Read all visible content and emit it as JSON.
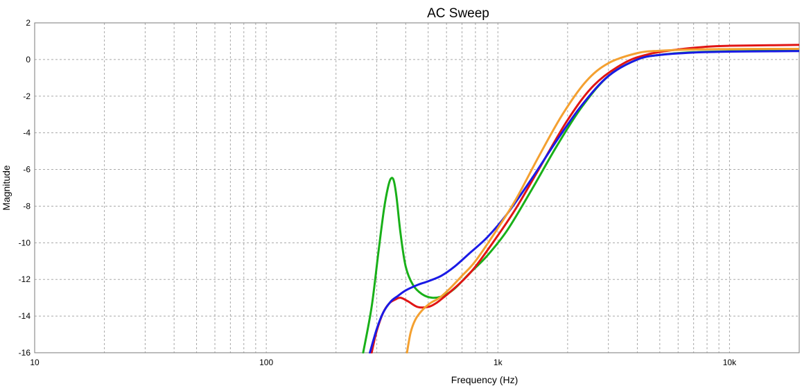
{
  "chart_data": {
    "type": "line",
    "title": "AC Sweep",
    "xlabel": "Frequency (Hz)",
    "ylabel": "Magnitude",
    "xscale": "log",
    "xlim": [
      10,
      20000
    ],
    "ylim": [
      -16,
      2
    ],
    "x_ticks": [
      {
        "value": 10,
        "label": "10"
      },
      {
        "value": 100,
        "label": "100"
      },
      {
        "value": 1000,
        "label": "1k"
      },
      {
        "value": 10000,
        "label": "10k"
      }
    ],
    "y_ticks": [
      {
        "value": 2,
        "label": "2"
      },
      {
        "value": 0,
        "label": "0"
      },
      {
        "value": -2,
        "label": "-2"
      },
      {
        "value": -4,
        "label": "-4"
      },
      {
        "value": -6,
        "label": "-6"
      },
      {
        "value": -8,
        "label": "-8"
      },
      {
        "value": -10,
        "label": "-10"
      },
      {
        "value": -12,
        "label": "-12"
      },
      {
        "value": -14,
        "label": "-14"
      },
      {
        "value": -16,
        "label": "-16"
      }
    ],
    "grid": true,
    "series": [
      {
        "color": "#19b019",
        "x": [
          262,
          285,
          305,
          322,
          335,
          345,
          355,
          365,
          380,
          400,
          430,
          470,
          520,
          580,
          650,
          750,
          900,
          1100,
          1400,
          1800,
          2300,
          3000,
          4000,
          5000,
          7000,
          10000,
          15000,
          20000
        ],
        "y": [
          -16,
          -13.5,
          -10.5,
          -8.2,
          -7.0,
          -6.5,
          -6.6,
          -7.5,
          -9.5,
          -11.3,
          -12.3,
          -12.8,
          -13.0,
          -12.9,
          -12.5,
          -11.7,
          -10.7,
          -9.3,
          -7.1,
          -4.7,
          -2.6,
          -0.9,
          0.0,
          0.25,
          0.4,
          0.45,
          0.48,
          0.5
        ]
      },
      {
        "color": "#e01414",
        "x": [
          285,
          300,
          320,
          340,
          360,
          380,
          410,
          450,
          500,
          540,
          580,
          620,
          700,
          800,
          1000,
          1200,
          1500,
          2000,
          2600,
          3500,
          4500,
          6000,
          8000,
          10000,
          15000,
          20000
        ],
        "y": [
          -16,
          -14.8,
          -13.8,
          -13.3,
          -13.1,
          -13.0,
          -13.2,
          -13.5,
          -13.5,
          -13.3,
          -13.0,
          -12.7,
          -12.1,
          -11.3,
          -9.6,
          -8.1,
          -6.0,
          -3.3,
          -1.4,
          -0.2,
          0.3,
          0.55,
          0.7,
          0.75,
          0.78,
          0.8
        ]
      },
      {
        "color": "#1a1ae6",
        "x": [
          280,
          300,
          320,
          345,
          370,
          400,
          450,
          500,
          570,
          650,
          750,
          900,
          1100,
          1400,
          1800,
          2300,
          3000,
          4000,
          5000,
          7000,
          10000,
          15000,
          20000
        ],
        "y": [
          -16,
          -14.7,
          -13.8,
          -13.2,
          -12.9,
          -12.6,
          -12.3,
          -12.1,
          -11.8,
          -11.3,
          -10.6,
          -9.7,
          -8.4,
          -6.5,
          -4.4,
          -2.5,
          -0.9,
          0.0,
          0.25,
          0.38,
          0.43,
          0.45,
          0.46
        ]
      },
      {
        "color": "#f4a030",
        "x": [
          405,
          420,
          440,
          470,
          510,
          560,
          620,
          700,
          800,
          1000,
          1200,
          1500,
          1900,
          2400,
          3000,
          4000,
          5000,
          7000,
          10000,
          15000,
          20000
        ],
        "y": [
          -16,
          -14.9,
          -14.2,
          -13.7,
          -13.3,
          -13.0,
          -12.5,
          -11.8,
          -11.0,
          -9.2,
          -7.6,
          -5.3,
          -3.0,
          -1.2,
          -0.2,
          0.35,
          0.48,
          0.55,
          0.57,
          0.58,
          0.58
        ]
      }
    ]
  }
}
